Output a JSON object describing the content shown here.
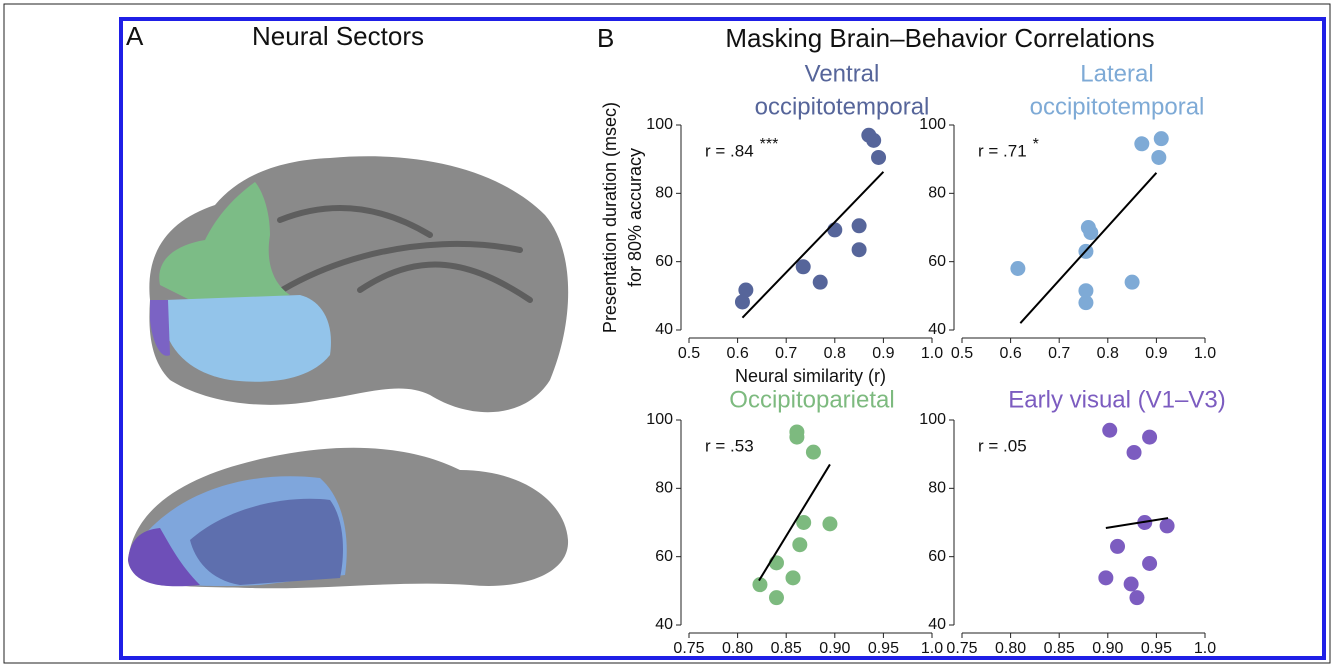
{
  "panel_a": {
    "label": "A",
    "title": "Neural Sectors"
  },
  "panel_b": {
    "label": "B",
    "title": "Masking Brain–Behavior Correlations"
  },
  "chart_data": [
    {
      "type": "scatter",
      "title": [
        "Ventral",
        "occipitotemporal"
      ],
      "annotation": "r = .84",
      "significance": "***",
      "ylabel": [
        "Presentation duration (msec)",
        "for 80% accuracy"
      ],
      "xlabel": "Neural similarity (r)",
      "color": "#56659a",
      "x": [
        0.87,
        0.88,
        0.89,
        0.85,
        0.8,
        0.85,
        0.735,
        0.77,
        0.617,
        0.61
      ],
      "values": [
        97,
        95.5,
        90.5,
        70.5,
        69.3,
        63.5,
        58.5,
        54,
        51.7,
        48.2
      ],
      "fit_line": {
        "x": [
          0.61,
          0.9
        ],
        "y": [
          43.6,
          86.3
        ]
      },
      "xlim": [
        0.5,
        1
      ],
      "xticks": [
        0.5,
        0.6,
        0.7,
        0.8,
        0.9,
        {
          "value": 1,
          "label": "1.0"
        }
      ],
      "ylim": [
        40,
        100
      ],
      "yticks": [
        40,
        60,
        80,
        100
      ]
    },
    {
      "type": "scatter",
      "title": [
        "Lateral",
        "occipitotemporal"
      ],
      "annotation": "r = .71",
      "significance": "*",
      "color": "#7eaad6",
      "x": [
        0.87,
        0.91,
        0.905,
        0.76,
        0.765,
        0.755,
        0.755,
        0.755,
        0.85,
        0.615
      ],
      "values": [
        94.5,
        96,
        90.5,
        70,
        68.5,
        63,
        51.5,
        48,
        54,
        58
      ],
      "fit_line": {
        "x": [
          0.62,
          0.9
        ],
        "y": [
          42,
          86
        ]
      },
      "xlim": [
        0.5,
        1
      ],
      "xticks": [
        0.5,
        0.6,
        0.7,
        0.8,
        0.9,
        {
          "value": 1,
          "label": "1.0"
        }
      ],
      "ylim": [
        40,
        100
      ],
      "yticks": [
        40,
        60,
        80,
        100
      ]
    },
    {
      "type": "scatter",
      "title": [
        "Occipitoparietal"
      ],
      "annotation": "r = .53",
      "color": "#7dba7f",
      "x": [
        0.861,
        0.861,
        0.878,
        0.868,
        0.895,
        0.864,
        0.84,
        0.857,
        0.823,
        0.84
      ],
      "values": [
        96.5,
        95,
        90.6,
        70,
        69.6,
        63.5,
        58.2,
        53.8,
        51.8,
        48
      ],
      "fit_line": {
        "x": [
          0.822,
          0.895
        ],
        "y": [
          53,
          87
        ]
      },
      "xlim": [
        0.75,
        1
      ],
      "xticks": [
        0.75,
        {
          "value": 0.8,
          "label": "0.80"
        },
        0.85,
        {
          "value": 0.9,
          "label": "0.90"
        },
        0.95,
        {
          "value": 1,
          "label": "1.0"
        }
      ],
      "ylim": [
        40,
        100
      ],
      "yticks": [
        40,
        60,
        80,
        100
      ]
    },
    {
      "type": "scatter",
      "title": [
        "Early visual (V1–V3)"
      ],
      "annotation": "r = .05",
      "color": "#7c5cc0",
      "x": [
        0.902,
        0.943,
        0.927,
        0.938,
        0.961,
        0.91,
        0.943,
        0.898,
        0.924,
        0.93
      ],
      "values": [
        97,
        95,
        90.5,
        70,
        69,
        63,
        58,
        53.8,
        52,
        48
      ],
      "fit_line": {
        "x": [
          0.898,
          0.962
        ],
        "y": [
          68.4,
          71.3
        ]
      },
      "xlim": [
        0.75,
        1
      ],
      "xticks": [
        0.75,
        {
          "value": 0.8,
          "label": "0.80"
        },
        0.85,
        {
          "value": 0.9,
          "label": "0.90"
        },
        0.95,
        {
          "value": 1,
          "label": "1.0"
        }
      ],
      "ylim": [
        40,
        100
      ],
      "yticks": [
        40,
        60,
        80,
        100
      ]
    }
  ]
}
